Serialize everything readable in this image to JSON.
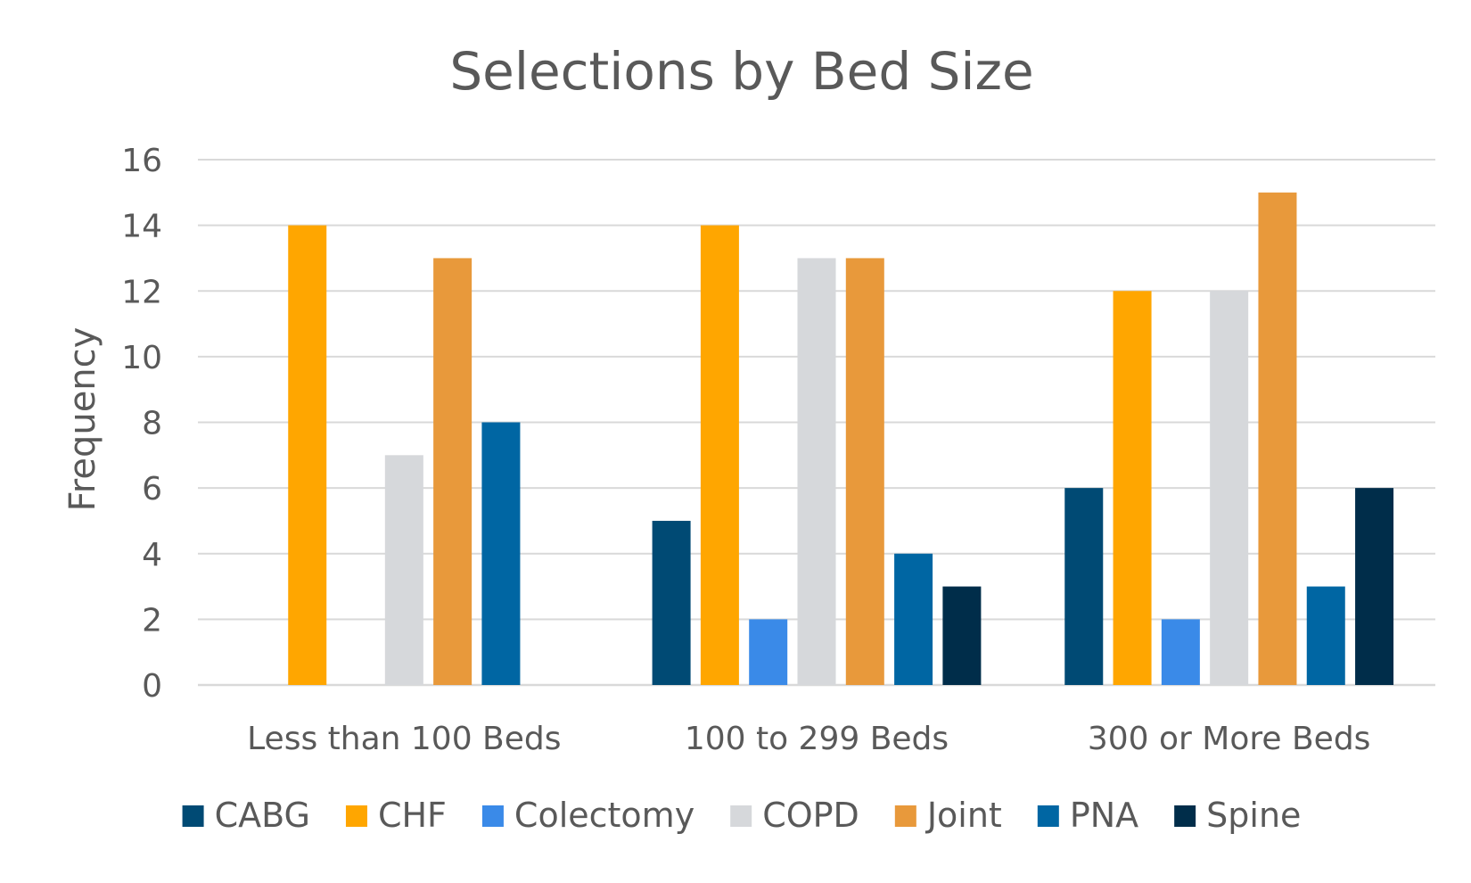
{
  "chart_data": {
    "type": "bar",
    "title": "Selections by Bed Size",
    "xlabel": "",
    "ylabel": "Frequency",
    "ylim": [
      0,
      16
    ],
    "yticks": [
      0,
      2,
      4,
      6,
      8,
      10,
      12,
      14,
      16
    ],
    "grid": true,
    "legend": "bottom",
    "categories": [
      "Less than 100 Beds",
      "100 to 299 Beds",
      "300 or More Beds"
    ],
    "series": [
      {
        "name": "CABG",
        "color": "#004a74",
        "values": [
          0,
          5,
          6
        ]
      },
      {
        "name": "CHF",
        "color": "#ffa600",
        "values": [
          14,
          14,
          12
        ]
      },
      {
        "name": "Colectomy",
        "color": "#3a8ae8",
        "values": [
          0,
          2,
          2
        ]
      },
      {
        "name": "COPD",
        "color": "#d6d8db",
        "values": [
          7,
          13,
          12
        ]
      },
      {
        "name": "Joint",
        "color": "#e8993b",
        "values": [
          13,
          13,
          15
        ]
      },
      {
        "name": "PNA",
        "color": "#0066a3",
        "values": [
          8,
          4,
          3
        ]
      },
      {
        "name": "Spine",
        "color": "#002d4a",
        "values": [
          0,
          3,
          6
        ]
      }
    ]
  }
}
